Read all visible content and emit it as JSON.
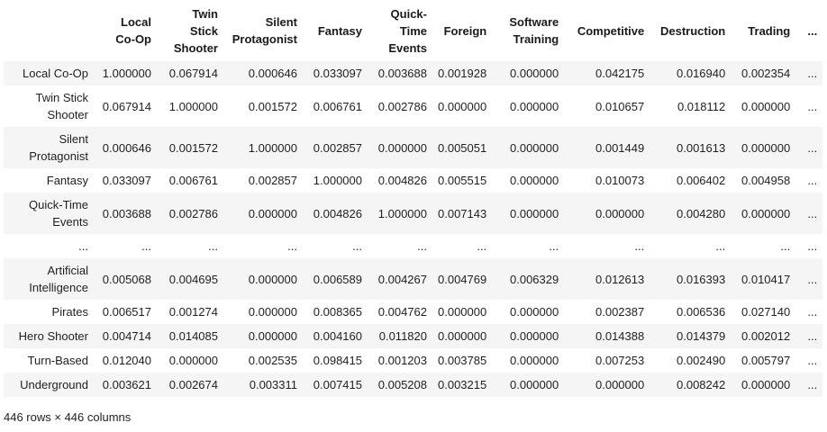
{
  "table": {
    "columns": [
      "Local Co-Op",
      "Twin Stick Shooter",
      "Silent Protagonist",
      "Fantasy",
      "Quick-Time Events",
      "Foreign",
      "Software Training",
      "Competitive",
      "Destruction",
      "Trading",
      "..."
    ],
    "rows": [
      {
        "label": "Local Co-Op",
        "values": [
          "1.000000",
          "0.067914",
          "0.000646",
          "0.033097",
          "0.003688",
          "0.001928",
          "0.000000",
          "0.042175",
          "0.016940",
          "0.002354",
          "..."
        ]
      },
      {
        "label": "Twin Stick Shooter",
        "values": [
          "0.067914",
          "1.000000",
          "0.001572",
          "0.006761",
          "0.002786",
          "0.000000",
          "0.000000",
          "0.010657",
          "0.018112",
          "0.000000",
          "..."
        ]
      },
      {
        "label": "Silent Protagonist",
        "values": [
          "0.000646",
          "0.001572",
          "1.000000",
          "0.002857",
          "0.000000",
          "0.005051",
          "0.000000",
          "0.001449",
          "0.001613",
          "0.000000",
          "..."
        ]
      },
      {
        "label": "Fantasy",
        "values": [
          "0.033097",
          "0.006761",
          "0.002857",
          "1.000000",
          "0.004826",
          "0.005515",
          "0.000000",
          "0.010073",
          "0.006402",
          "0.004958",
          "..."
        ]
      },
      {
        "label": "Quick-Time Events",
        "values": [
          "0.003688",
          "0.002786",
          "0.000000",
          "0.004826",
          "1.000000",
          "0.007143",
          "0.000000",
          "0.000000",
          "0.004280",
          "0.000000",
          "..."
        ]
      },
      {
        "label": "...",
        "values": [
          "...",
          "...",
          "...",
          "...",
          "...",
          "...",
          "...",
          "...",
          "...",
          "...",
          "..."
        ]
      },
      {
        "label": "Artificial Intelligence",
        "values": [
          "0.005068",
          "0.004695",
          "0.000000",
          "0.006589",
          "0.004267",
          "0.004769",
          "0.006329",
          "0.012613",
          "0.016393",
          "0.010417",
          "..."
        ]
      },
      {
        "label": "Pirates",
        "values": [
          "0.006517",
          "0.001274",
          "0.000000",
          "0.008365",
          "0.004762",
          "0.000000",
          "0.000000",
          "0.002387",
          "0.006536",
          "0.027140",
          "..."
        ]
      },
      {
        "label": "Hero Shooter",
        "values": [
          "0.004714",
          "0.014085",
          "0.000000",
          "0.004160",
          "0.011820",
          "0.000000",
          "0.000000",
          "0.014388",
          "0.014379",
          "0.002012",
          "..."
        ]
      },
      {
        "label": "Turn-Based",
        "values": [
          "0.012040",
          "0.000000",
          "0.002535",
          "0.098415",
          "0.001203",
          "0.003785",
          "0.000000",
          "0.007253",
          "0.002490",
          "0.005797",
          "..."
        ]
      },
      {
        "label": "Underground",
        "values": [
          "0.003621",
          "0.002674",
          "0.003311",
          "0.007415",
          "0.005208",
          "0.003215",
          "0.000000",
          "0.000000",
          "0.008242",
          "0.000000",
          "..."
        ]
      }
    ]
  },
  "footer": {
    "shape_text": "446 rows × 446 columns"
  }
}
